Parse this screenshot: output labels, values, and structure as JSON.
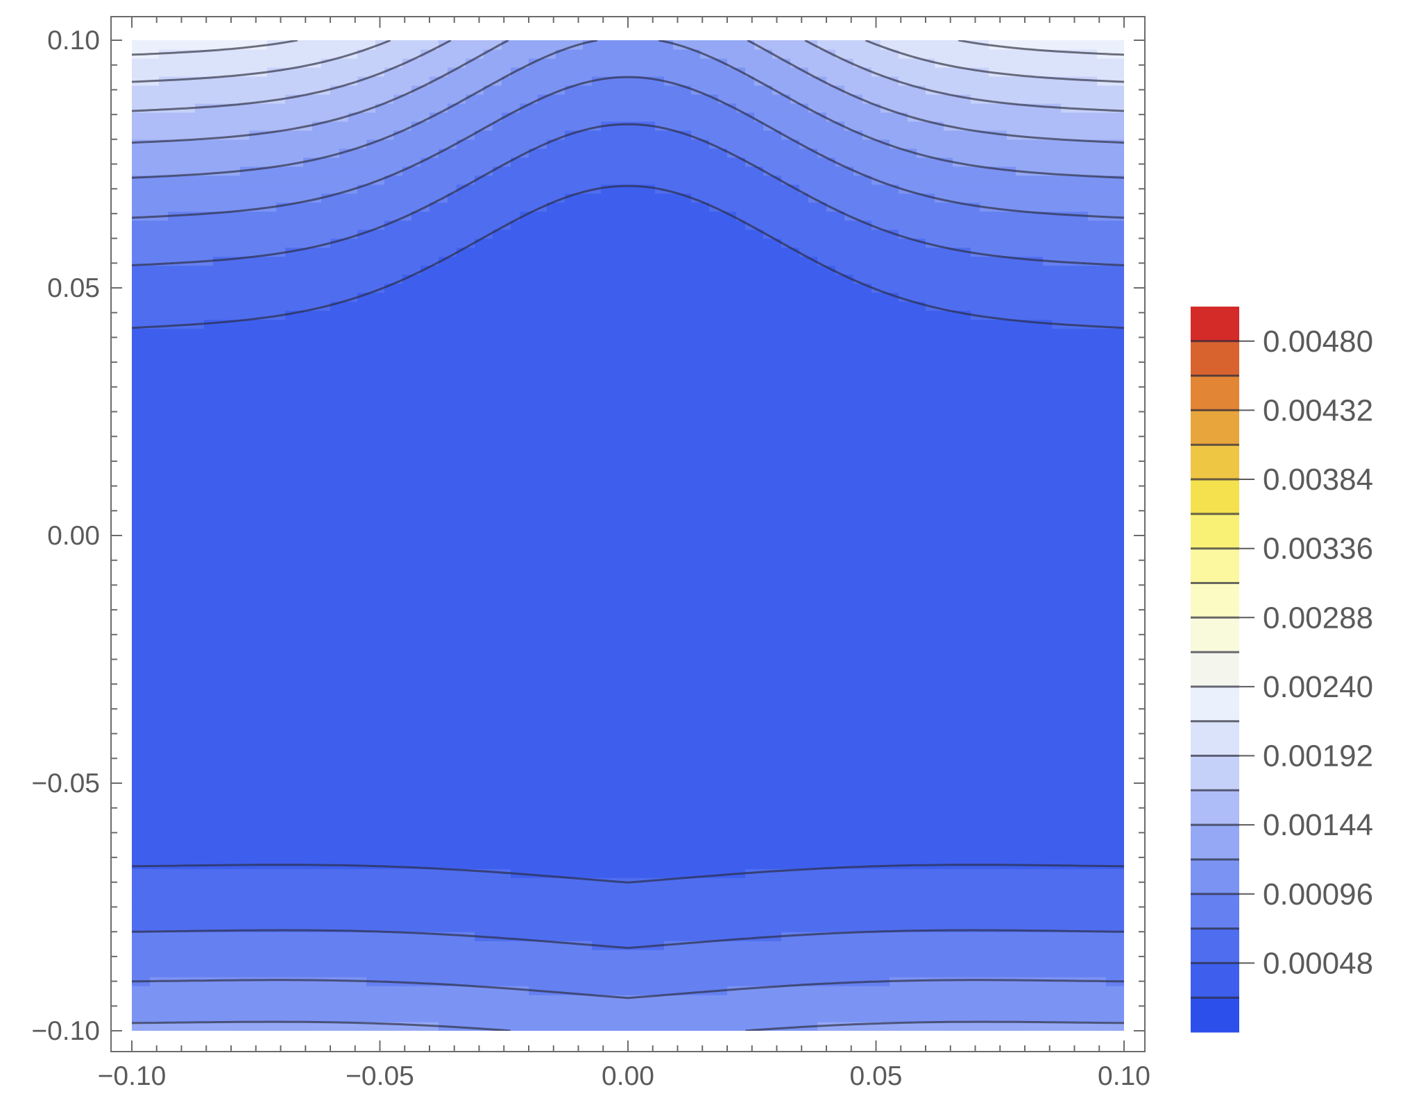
{
  "chart_data": {
    "type": "contour",
    "title": "",
    "xlabel": "",
    "ylabel": "",
    "xlim": [
      -0.1,
      0.1
    ],
    "ylim": [
      -0.1,
      0.1
    ],
    "x_ticks": [
      "−0.10",
      "−0.05",
      "0.00",
      "0.05",
      "0.10"
    ],
    "y_ticks": [
      "−0.10",
      "−0.05",
      "0.00",
      "0.05",
      "0.10"
    ],
    "x_tick_values": [
      -0.1,
      -0.05,
      0.0,
      0.05,
      0.1
    ],
    "y_tick_values": [
      -0.1,
      -0.05,
      0.0,
      0.05,
      0.1
    ],
    "contour_levels": [
      0.00024,
      0.00048,
      0.00072,
      0.00096,
      0.0012,
      0.00144,
      0.00168,
      0.00192,
      0.00216,
      0.0024,
      0.00264,
      0.00288,
      0.00312,
      0.00336,
      0.0036,
      0.00384,
      0.00408,
      0.00432,
      0.00456,
      0.0048
    ],
    "level_colors": [
      "#2c4fec",
      "#3e5fed",
      "#4f6def",
      "#6580f1",
      "#7b93f3",
      "#94a8f5",
      "#aebcf7",
      "#c6d1f9",
      "#dbe3fb",
      "#ebf0fd",
      "#f4f6ee",
      "#f9f9dc",
      "#fcfbc4",
      "#fbf8a0",
      "#f9f176",
      "#f5e04e",
      "#efc644",
      "#e8a53c",
      "#e28535",
      "#d8632f",
      "#d42a28"
    ],
    "colorbar": {
      "ticks": [
        "0.00048",
        "0.00096",
        "0.00144",
        "0.00192",
        "0.00240",
        "0.00288",
        "0.00336",
        "0.00384",
        "0.00432",
        "0.00480"
      ],
      "tick_values": [
        0.00048,
        0.00096,
        0.00144,
        0.00192,
        0.0024,
        0.00288,
        0.00336,
        0.00384,
        0.00432,
        0.0048
      ],
      "range": [
        0,
        0.00504
      ]
    },
    "grid": false,
    "legend": "colorbar-right"
  }
}
